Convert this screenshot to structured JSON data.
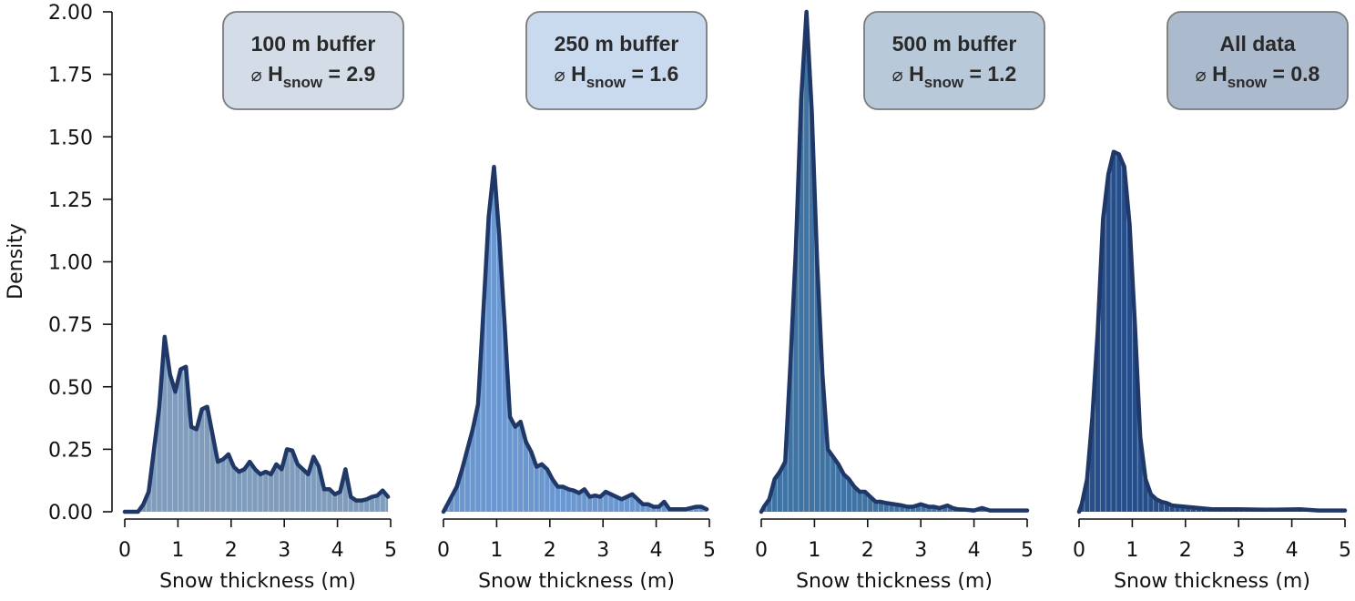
{
  "chart_data": {
    "type": "area",
    "ylabel": "Density",
    "ylim": [
      0,
      2.0
    ],
    "yticks": [
      "0.00",
      "0.25",
      "0.50",
      "0.75",
      "1.00",
      "1.25",
      "1.50",
      "1.75",
      "2.00"
    ],
    "grid": false,
    "line_color": "#1f3868",
    "panels": [
      {
        "title": "100 m buffer",
        "mean_symbol": "⌀",
        "mean_label": "H",
        "mean_sub": "snow",
        "mean_value": "= 2.9",
        "box_color": "#d3dce7",
        "fill_color": "#7f9cbd",
        "xlabel": "Snow thickness (m)",
        "xlim": [
          0,
          5
        ],
        "xticks": [
          "0",
          "1",
          "2",
          "3",
          "4",
          "5"
        ],
        "x": [
          0,
          0.25,
          0.35,
          0.45,
          0.55,
          0.65,
          0.75,
          0.85,
          0.95,
          1.05,
          1.15,
          1.25,
          1.35,
          1.45,
          1.55,
          1.65,
          1.75,
          1.85,
          1.95,
          2.05,
          2.15,
          2.25,
          2.35,
          2.45,
          2.55,
          2.65,
          2.75,
          2.85,
          2.95,
          3.05,
          3.15,
          3.25,
          3.35,
          3.45,
          3.55,
          3.65,
          3.75,
          3.85,
          3.95,
          4.05,
          4.15,
          4.25,
          4.35,
          4.45,
          4.55,
          4.65,
          4.75,
          4.85,
          4.95
        ],
        "y": [
          0,
          0,
          0.03,
          0.08,
          0.25,
          0.42,
          0.7,
          0.55,
          0.48,
          0.57,
          0.58,
          0.34,
          0.33,
          0.41,
          0.42,
          0.31,
          0.2,
          0.21,
          0.23,
          0.18,
          0.16,
          0.17,
          0.2,
          0.17,
          0.15,
          0.16,
          0.15,
          0.19,
          0.17,
          0.25,
          0.245,
          0.19,
          0.17,
          0.15,
          0.22,
          0.18,
          0.09,
          0.09,
          0.07,
          0.08,
          0.17,
          0.06,
          0.045,
          0.045,
          0.05,
          0.06,
          0.065,
          0.085,
          0.06
        ]
      },
      {
        "title": "250 m buffer",
        "mean_symbol": "⌀",
        "mean_label": "H",
        "mean_sub": "snow",
        "mean_value": "= 1.6",
        "box_color": "#c9d9ee",
        "fill_color": "#6a97d0",
        "xlabel": "Snow thickness (m)",
        "xlim": [
          0,
          5
        ],
        "xticks": [
          "0",
          "1",
          "2",
          "3",
          "4",
          "5"
        ],
        "x": [
          0,
          0.05,
          0.15,
          0.25,
          0.35,
          0.45,
          0.55,
          0.65,
          0.75,
          0.85,
          0.95,
          1.05,
          1.15,
          1.25,
          1.35,
          1.45,
          1.55,
          1.65,
          1.75,
          1.85,
          1.95,
          2.05,
          2.15,
          2.25,
          2.35,
          2.45,
          2.55,
          2.65,
          2.75,
          2.85,
          2.95,
          3.05,
          3.15,
          3.25,
          3.35,
          3.45,
          3.55,
          3.65,
          3.75,
          3.85,
          3.95,
          4.05,
          4.15,
          4.25,
          4.35,
          4.45,
          4.55,
          4.65,
          4.75,
          4.85,
          4.95
        ],
        "y": [
          0,
          0.02,
          0.06,
          0.1,
          0.17,
          0.25,
          0.33,
          0.43,
          0.8,
          1.18,
          1.38,
          1.1,
          0.75,
          0.38,
          0.34,
          0.36,
          0.28,
          0.24,
          0.18,
          0.19,
          0.17,
          0.13,
          0.1,
          0.1,
          0.09,
          0.085,
          0.075,
          0.09,
          0.06,
          0.065,
          0.06,
          0.08,
          0.07,
          0.06,
          0.05,
          0.06,
          0.07,
          0.05,
          0.03,
          0.03,
          0.02,
          0.02,
          0.04,
          0.01,
          0.01,
          0.01,
          0.01,
          0.015,
          0.02,
          0.02,
          0.01
        ]
      },
      {
        "title": "500 m buffer",
        "mean_symbol": "⌀",
        "mean_label": "H",
        "mean_sub": "snow",
        "mean_value": "= 1.2",
        "box_color": "#b8c9da",
        "fill_color": "#3f73a3",
        "xlabel": "Snow thickness (m)",
        "xlim": [
          0,
          5
        ],
        "xticks": [
          "0",
          "1",
          "2",
          "3",
          "4",
          "5"
        ],
        "x": [
          0,
          0.05,
          0.15,
          0.25,
          0.35,
          0.45,
          0.55,
          0.65,
          0.75,
          0.85,
          0.95,
          1.05,
          1.15,
          1.25,
          1.35,
          1.45,
          1.55,
          1.65,
          1.75,
          1.85,
          1.95,
          2.05,
          2.15,
          2.25,
          2.35,
          2.5,
          2.65,
          2.75,
          2.85,
          3.0,
          3.15,
          3.25,
          3.35,
          3.5,
          3.6,
          3.7,
          3.85,
          4.0,
          4.15,
          4.3,
          4.6,
          5.0
        ],
        "y": [
          0,
          0.02,
          0.05,
          0.13,
          0.16,
          0.2,
          0.6,
          1.05,
          1.65,
          2.0,
          1.6,
          1.0,
          0.55,
          0.25,
          0.22,
          0.19,
          0.15,
          0.13,
          0.1,
          0.08,
          0.08,
          0.06,
          0.04,
          0.04,
          0.035,
          0.03,
          0.025,
          0.02,
          0.02,
          0.03,
          0.02,
          0.02,
          0.015,
          0.025,
          0.015,
          0.01,
          0.008,
          0.005,
          0.015,
          0.005,
          0.005,
          0.005
        ]
      },
      {
        "title": "All data",
        "mean_symbol": "⌀",
        "mean_label": "H",
        "mean_sub": "snow",
        "mean_value": "= 0.8",
        "box_color": "#abbacd",
        "fill_color": "#264e8a",
        "xlabel": "Snow thickness (m)",
        "xlim": [
          0,
          5
        ],
        "xticks": [
          "0",
          "1",
          "2",
          "3",
          "4",
          "5"
        ],
        "x": [
          0,
          0.05,
          0.15,
          0.25,
          0.35,
          0.45,
          0.55,
          0.65,
          0.75,
          0.85,
          0.95,
          1.05,
          1.15,
          1.25,
          1.35,
          1.45,
          1.55,
          1.65,
          1.75,
          2.0,
          2.25,
          2.5,
          3.0,
          3.5,
          4.15,
          4.5,
          5.0
        ],
        "y": [
          0,
          0.03,
          0.13,
          0.38,
          0.72,
          1.17,
          1.35,
          1.44,
          1.43,
          1.38,
          1.15,
          0.75,
          0.3,
          0.13,
          0.07,
          0.05,
          0.04,
          0.035,
          0.025,
          0.02,
          0.015,
          0.01,
          0.01,
          0.008,
          0.01,
          0.005,
          0.005
        ]
      }
    ]
  }
}
